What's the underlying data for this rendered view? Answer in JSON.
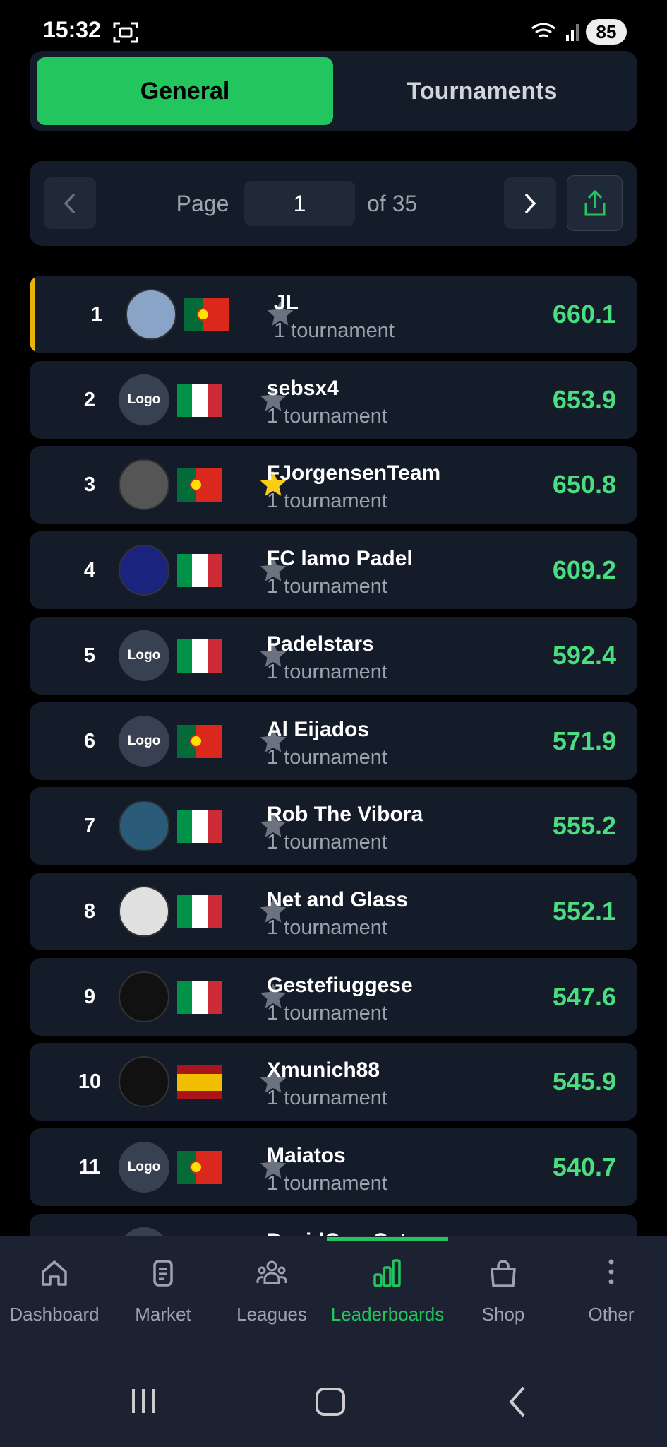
{
  "status_bar": {
    "time": "15:32",
    "battery": "85"
  },
  "tabs": [
    {
      "label": "General",
      "active": true
    },
    {
      "label": "Tournaments",
      "active": false
    }
  ],
  "pagination": {
    "page_label": "Page",
    "page": 1,
    "of_label": "of 35"
  },
  "rows": [
    {
      "rank": 1,
      "name": "JL",
      "subtitle": "1 tournament",
      "score": 660.1,
      "flag": "pt",
      "favorite": false,
      "highlight": true
    },
    {
      "rank": 2,
      "name": "sebsx4",
      "subtitle": "1 tournament",
      "score": 653.9,
      "flag": "it",
      "favorite": false,
      "logo": "Logo"
    },
    {
      "rank": 3,
      "name": "FJorgensenTeam",
      "subtitle": "1 tournament",
      "score": 650.8,
      "flag": "pt",
      "favorite": true
    },
    {
      "rank": 4,
      "name": "FC lamo Padel",
      "subtitle": "1 tournament",
      "score": 609.2,
      "flag": "it",
      "favorite": false
    },
    {
      "rank": 5,
      "name": "Padelstars",
      "subtitle": "1 tournament",
      "score": 592.4,
      "flag": "it",
      "favorite": false,
      "logo": "Logo"
    },
    {
      "rank": 6,
      "name": "Al Eijados",
      "subtitle": "1 tournament",
      "score": 571.9,
      "flag": "pt",
      "favorite": false,
      "logo": "Logo"
    },
    {
      "rank": 7,
      "name": "Rob The Vibora",
      "subtitle": "1 tournament",
      "score": 555.2,
      "flag": "it",
      "favorite": false
    },
    {
      "rank": 8,
      "name": "Net and Glass",
      "subtitle": "1 tournament",
      "score": 552.1,
      "flag": "it",
      "favorite": false
    },
    {
      "rank": 9,
      "name": "Gestefiuggese",
      "subtitle": "1 tournament",
      "score": 547.6,
      "flag": "it",
      "favorite": false
    },
    {
      "rank": 10,
      "name": "Xmunich88",
      "subtitle": "1 tournament",
      "score": 545.9,
      "flag": "es",
      "favorite": false
    },
    {
      "rank": 11,
      "name": "Maiatos",
      "subtitle": "1 tournament",
      "score": 540.7,
      "flag": "pt",
      "favorite": false,
      "logo": "Logo"
    }
  ],
  "partial_row": {
    "name": "DavidCaroCat"
  },
  "nav": [
    {
      "label": "Dashboard",
      "icon": "home",
      "active": false
    },
    {
      "label": "Market",
      "icon": "market",
      "active": false
    },
    {
      "label": "Leagues",
      "icon": "leagues",
      "active": false
    },
    {
      "label": "Leaderboards",
      "icon": "bars",
      "active": true
    },
    {
      "label": "Shop",
      "icon": "shop",
      "active": false
    },
    {
      "label": "Other",
      "icon": "dots",
      "active": false
    }
  ]
}
